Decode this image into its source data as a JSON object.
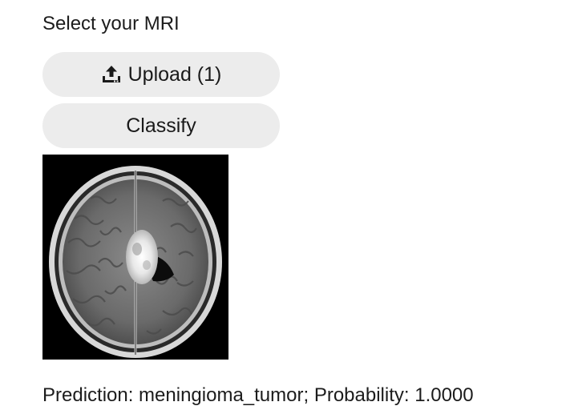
{
  "form": {
    "label": "Select your MRI",
    "upload_button": {
      "label": "Upload (1)",
      "icon": "upload-icon"
    },
    "classify_button": {
      "label": "Classify"
    }
  },
  "preview": {
    "image": "brain-mri-axial-scan"
  },
  "result": {
    "text": "Prediction: meningioma_tumor; Probability: 1.0000"
  }
}
